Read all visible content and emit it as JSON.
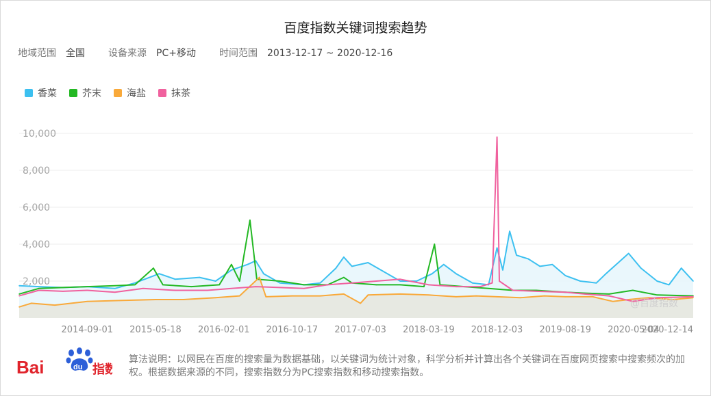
{
  "title": "百度指数关键词搜索趋势",
  "meta": {
    "region_label": "地域范围",
    "region_value": "全国",
    "device_label": "设备来源",
    "device_value": "PC+移动",
    "time_label": "时间范围",
    "time_value": "2013-12-17 ~ 2020-12-16"
  },
  "legend": [
    {
      "name": "香菜",
      "color": "#3cc0f0"
    },
    {
      "name": "芥末",
      "color": "#23b823"
    },
    {
      "name": "海盐",
      "color": "#f9a93a"
    },
    {
      "name": "抹茶",
      "color": "#f0619e"
    }
  ],
  "watermark": "@百度指数",
  "logo": {
    "bai": "Bai",
    "du": "du",
    "zhishu": "指数"
  },
  "note": "算法说明：以网民在百度的搜索量为数据基础，以关键词为统计对象，科学分析并计算出各个关键词在百度网页搜索中搜索频次的加权。根据数据来源的不同，搜索指数分为PC搜索指数和移动搜索指数。",
  "chart_data": {
    "type": "line",
    "title": "百度指数关键词搜索趋势",
    "ylim": [
      0,
      10000
    ],
    "yticks": [
      2000,
      4000,
      6000,
      8000,
      10000
    ],
    "ytick_labels": [
      "2,000",
      "4,000",
      "6,000",
      "8,000",
      "10,000"
    ],
    "xticks": [
      "2014-09-01",
      "2015-05-18",
      "2016-02-01",
      "2016-10-17",
      "2017-07-03",
      "2018-03-19",
      "2018-12-03",
      "2019-08-19",
      "2020-05-04",
      "2020-12-14"
    ],
    "x_range": [
      "2013-12-17",
      "2020-12-16"
    ],
    "grid": true,
    "legend_position": "top-left",
    "series": [
      {
        "name": "香菜",
        "color": "#3cc0f0",
        "fill": "#e8f6fc",
        "points": [
          [
            "2013-12-17",
            1750
          ],
          [
            "2014-03-01",
            1700
          ],
          [
            "2014-06-01",
            1650
          ],
          [
            "2014-09-01",
            1700
          ],
          [
            "2014-12-15",
            1600
          ],
          [
            "2015-03-01",
            1900
          ],
          [
            "2015-06-01",
            2400
          ],
          [
            "2015-08-01",
            2100
          ],
          [
            "2015-11-01",
            2200
          ],
          [
            "2016-01-01",
            2000
          ],
          [
            "2016-03-01",
            2600
          ],
          [
            "2016-05-01",
            2900
          ],
          [
            "2016-06-01",
            3100
          ],
          [
            "2016-07-01",
            2400
          ],
          [
            "2016-09-01",
            1900
          ],
          [
            "2016-12-01",
            1800
          ],
          [
            "2017-02-01",
            1900
          ],
          [
            "2017-04-01",
            2700
          ],
          [
            "2017-05-01",
            3300
          ],
          [
            "2017-06-01",
            2800
          ],
          [
            "2017-08-01",
            3000
          ],
          [
            "2017-10-01",
            2500
          ],
          [
            "2017-12-01",
            2000
          ],
          [
            "2018-02-01",
            2000
          ],
          [
            "2018-04-01",
            2400
          ],
          [
            "2018-05-15",
            2900
          ],
          [
            "2018-07-01",
            2400
          ],
          [
            "2018-09-01",
            1900
          ],
          [
            "2018-11-01",
            1800
          ],
          [
            "2018-12-03",
            3800
          ],
          [
            "2018-12-25",
            2600
          ],
          [
            "2019-01-20",
            4700
          ],
          [
            "2019-02-15",
            3400
          ],
          [
            "2019-04-01",
            3200
          ],
          [
            "2019-05-15",
            2800
          ],
          [
            "2019-07-01",
            2900
          ],
          [
            "2019-08-19",
            2300
          ],
          [
            "2019-10-15",
            2000
          ],
          [
            "2019-12-15",
            1900
          ],
          [
            "2020-01-20",
            2400
          ],
          [
            "2020-03-15",
            3100
          ],
          [
            "2020-04-15",
            3500
          ],
          [
            "2020-06-01",
            2700
          ],
          [
            "2020-08-01",
            2000
          ],
          [
            "2020-09-15",
            1800
          ],
          [
            "2020-11-01",
            2700
          ],
          [
            "2020-12-16",
            2000
          ]
        ]
      },
      {
        "name": "芥末",
        "color": "#23b823",
        "fill": null,
        "points": [
          [
            "2013-12-17",
            1300
          ],
          [
            "2014-03-01",
            1600
          ],
          [
            "2014-06-01",
            1650
          ],
          [
            "2014-09-01",
            1700
          ],
          [
            "2014-12-15",
            1750
          ],
          [
            "2015-03-01",
            1800
          ],
          [
            "2015-05-10",
            2700
          ],
          [
            "2015-06-15",
            1800
          ],
          [
            "2015-10-01",
            1700
          ],
          [
            "2016-01-15",
            1800
          ],
          [
            "2016-03-01",
            2900
          ],
          [
            "2016-04-01",
            2000
          ],
          [
            "2016-05-10",
            5300
          ],
          [
            "2016-06-05",
            2100
          ],
          [
            "2016-09-01",
            2000
          ],
          [
            "2016-12-01",
            1800
          ],
          [
            "2017-03-01",
            1800
          ],
          [
            "2017-05-01",
            2200
          ],
          [
            "2017-06-01",
            1900
          ],
          [
            "2017-09-01",
            1800
          ],
          [
            "2017-12-01",
            1800
          ],
          [
            "2018-03-01",
            1700
          ],
          [
            "2018-04-10",
            4000
          ],
          [
            "2018-05-01",
            1800
          ],
          [
            "2018-08-01",
            1700
          ],
          [
            "2018-11-01",
            1600
          ],
          [
            "2019-02-01",
            1500
          ],
          [
            "2019-05-01",
            1500
          ],
          [
            "2019-08-19",
            1400
          ],
          [
            "2019-11-01",
            1350
          ],
          [
            "2020-02-01",
            1300
          ],
          [
            "2020-05-01",
            1500
          ],
          [
            "2020-08-01",
            1250
          ],
          [
            "2020-12-16",
            1200
          ]
        ]
      },
      {
        "name": "海盐",
        "color": "#f9a93a",
        "fill": "#e7e7df",
        "points": [
          [
            "2013-12-17",
            600
          ],
          [
            "2014-02-01",
            800
          ],
          [
            "2014-05-01",
            700
          ],
          [
            "2014-09-01",
            900
          ],
          [
            "2015-01-01",
            950
          ],
          [
            "2015-05-18",
            1000
          ],
          [
            "2015-09-01",
            1000
          ],
          [
            "2016-01-01",
            1100
          ],
          [
            "2016-04-01",
            1200
          ],
          [
            "2016-06-15",
            2200
          ],
          [
            "2016-07-10",
            1150
          ],
          [
            "2016-10-17",
            1200
          ],
          [
            "2017-02-01",
            1200
          ],
          [
            "2017-05-01",
            1300
          ],
          [
            "2017-07-03",
            800
          ],
          [
            "2017-08-01",
            1250
          ],
          [
            "2017-12-01",
            1300
          ],
          [
            "2018-03-19",
            1250
          ],
          [
            "2018-07-01",
            1150
          ],
          [
            "2018-09-15",
            1200
          ],
          [
            "2018-12-03",
            1150
          ],
          [
            "2019-03-01",
            1100
          ],
          [
            "2019-06-01",
            1200
          ],
          [
            "2019-08-19",
            1150
          ],
          [
            "2019-12-01",
            1150
          ],
          [
            "2020-02-15",
            900
          ],
          [
            "2020-04-15",
            1000
          ],
          [
            "2020-07-01",
            1100
          ],
          [
            "2020-10-01",
            1000
          ],
          [
            "2020-12-16",
            1100
          ]
        ]
      },
      {
        "name": "抹茶",
        "color": "#f0619e",
        "fill": null,
        "points": [
          [
            "2013-12-17",
            1200
          ],
          [
            "2014-03-01",
            1500
          ],
          [
            "2014-06-01",
            1450
          ],
          [
            "2014-09-01",
            1500
          ],
          [
            "2014-12-15",
            1400
          ],
          [
            "2015-04-01",
            1600
          ],
          [
            "2015-08-01",
            1500
          ],
          [
            "2015-12-01",
            1500
          ],
          [
            "2016-03-01",
            1600
          ],
          [
            "2016-06-01",
            1700
          ],
          [
            "2016-09-01",
            1650
          ],
          [
            "2016-12-01",
            1600
          ],
          [
            "2017-03-01",
            1800
          ],
          [
            "2017-06-01",
            1900
          ],
          [
            "2017-09-01",
            2000
          ],
          [
            "2017-12-01",
            2100
          ],
          [
            "2018-03-19",
            1800
          ],
          [
            "2018-07-01",
            1700
          ],
          [
            "2018-10-01",
            1700
          ],
          [
            "2018-11-15",
            1900
          ],
          [
            "2018-12-03",
            9800
          ],
          [
            "2018-12-12",
            2000
          ],
          [
            "2019-02-01",
            1500
          ],
          [
            "2019-05-01",
            1450
          ],
          [
            "2019-08-19",
            1400
          ],
          [
            "2019-11-01",
            1300
          ],
          [
            "2020-02-01",
            1200
          ],
          [
            "2020-05-01",
            900
          ],
          [
            "2020-08-01",
            1100
          ],
          [
            "2020-12-16",
            1150
          ]
        ]
      }
    ]
  }
}
